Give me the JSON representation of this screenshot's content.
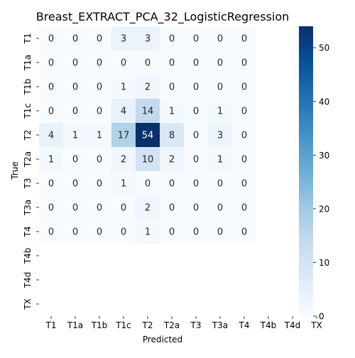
{
  "chart_data": {
    "type": "heatmap",
    "title": "Breast_EXTRACT_PCA_32_LogisticRegression",
    "xlabel": "Predicted",
    "ylabel": "True",
    "x_categories": [
      "T1",
      "T1a",
      "T1b",
      "T1c",
      "T2",
      "T2a",
      "T3",
      "T3a",
      "T4",
      "T4b",
      "T4d",
      "TX"
    ],
    "y_categories": [
      "T1",
      "T1a",
      "T1b",
      "T1c",
      "T2",
      "T2a",
      "T3",
      "T3a",
      "T4",
      "T4b",
      "T4d",
      "TX"
    ],
    "values": [
      [
        0,
        0,
        0,
        3,
        3,
        0,
        0,
        0,
        0,
        null,
        null,
        null
      ],
      [
        0,
        0,
        0,
        0,
        0,
        0,
        0,
        0,
        0,
        null,
        null,
        null
      ],
      [
        0,
        0,
        0,
        1,
        2,
        0,
        0,
        0,
        0,
        null,
        null,
        null
      ],
      [
        0,
        0,
        0,
        4,
        14,
        1,
        0,
        1,
        0,
        null,
        null,
        null
      ],
      [
        4,
        1,
        1,
        17,
        54,
        8,
        0,
        3,
        0,
        null,
        null,
        null
      ],
      [
        1,
        0,
        0,
        2,
        10,
        2,
        0,
        1,
        0,
        null,
        null,
        null
      ],
      [
        0,
        0,
        0,
        1,
        0,
        0,
        0,
        0,
        0,
        null,
        null,
        null
      ],
      [
        0,
        0,
        0,
        0,
        2,
        0,
        0,
        0,
        0,
        null,
        null,
        null
      ],
      [
        0,
        0,
        0,
        0,
        1,
        0,
        0,
        0,
        0,
        null,
        null,
        null
      ],
      [
        null,
        null,
        null,
        null,
        null,
        null,
        null,
        null,
        null,
        null,
        null,
        null
      ],
      [
        null,
        null,
        null,
        null,
        null,
        null,
        null,
        null,
        null,
        null,
        null,
        null
      ],
      [
        null,
        null,
        null,
        null,
        null,
        null,
        null,
        null,
        null,
        null,
        null,
        null
      ]
    ],
    "vmin": 0,
    "vmax": 54,
    "colormap": "Blues",
    "colorbar_ticks": [
      0,
      10,
      20,
      30,
      40,
      50
    ]
  }
}
